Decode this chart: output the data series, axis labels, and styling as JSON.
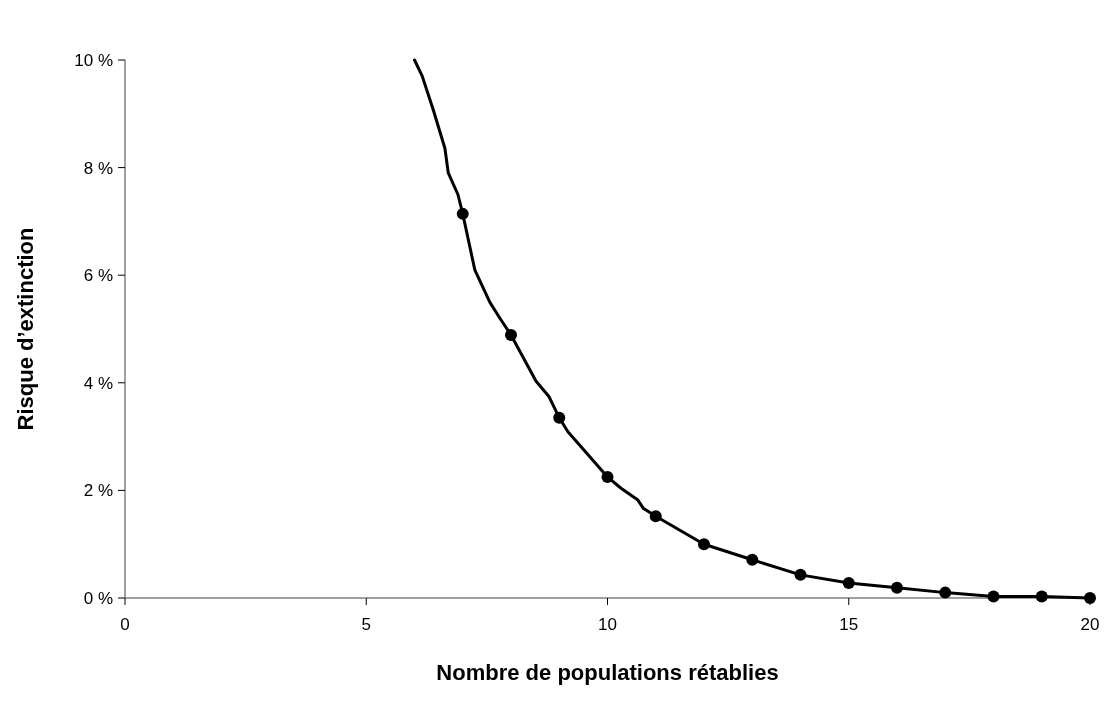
{
  "chart_data": {
    "type": "line",
    "xlabel": "Nombre de populations rétablies",
    "ylabel": "Risque d’extinction",
    "xlim": [
      0,
      20
    ],
    "xticks": [
      0,
      5,
      10,
      15,
      20
    ],
    "ylim": [
      0,
      10
    ],
    "yticks": [
      {
        "value": 0,
        "label": "0 %"
      },
      {
        "value": 2,
        "label": "2 %"
      },
      {
        "value": 4,
        "label": "4 %"
      },
      {
        "value": 6,
        "label": "6 %"
      },
      {
        "value": 8,
        "label": "8 %"
      },
      {
        "value": 10,
        "label": "10 %"
      }
    ],
    "grid": false,
    "series": [
      {
        "color": "#000000",
        "marker": "none",
        "line_style": "solid",
        "x": [
          6.0,
          6.16,
          6.39,
          6.63,
          6.7,
          6.9,
          7,
          7.25,
          7.56,
          7.77,
          8,
          8.52,
          8.79,
          9,
          9.18,
          10,
          10.28,
          10.63,
          10.74,
          11,
          12,
          13,
          14,
          15,
          16,
          17,
          18,
          19,
          20
        ],
        "values": [
          10,
          9.7,
          9.07,
          8.36,
          7.9,
          7.5,
          7.14,
          6.1,
          5.5,
          5.2,
          4.89,
          4.03,
          3.74,
          3.35,
          3.09,
          2.25,
          2.04,
          1.82,
          1.67,
          1.52,
          1.0,
          0.71,
          0.43,
          0.28,
          0.19,
          0.1,
          0.03,
          0.03,
          0
        ]
      },
      {
        "type": "scatter",
        "color": "#000000",
        "marker": "circle",
        "x": [
          7,
          8,
          9,
          10,
          11,
          12,
          13,
          14,
          15,
          16,
          17,
          18,
          19,
          20
        ],
        "values": [
          7.14,
          4.89,
          3.35,
          2.25,
          1.52,
          1.0,
          0.71,
          0.43,
          0.28,
          0.19,
          0.1,
          0.03,
          0.03,
          0
        ]
      }
    ]
  }
}
